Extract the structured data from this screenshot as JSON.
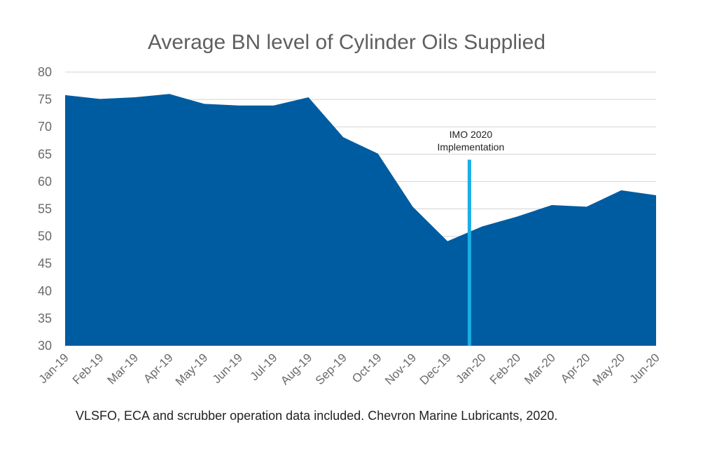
{
  "chart_data": {
    "type": "area",
    "title": "Average BN level of Cylinder Oils Supplied",
    "xlabel": "",
    "ylabel": "",
    "categories": [
      "Jan-19",
      "Feb-19",
      "Mar-19",
      "Apr-19",
      "May-19",
      "Jun-19",
      "Jul-19",
      "Aug-19",
      "Sep-19",
      "Oct-19",
      "Nov-19",
      "Dec-19",
      "Jan-20",
      "Feb-20",
      "Mar-20",
      "Apr-20",
      "May-20",
      "Jun-20"
    ],
    "series": [
      {
        "values": [
          75.8,
          75.1,
          75.4,
          76.0,
          74.2,
          73.9,
          73.9,
          75.4,
          68.1,
          65.1,
          55.4,
          49.1,
          51.8,
          53.6,
          55.7,
          55.4,
          58.4,
          57.5
        ]
      }
    ],
    "ylim": [
      30,
      80
    ],
    "yticks": [
      30,
      35,
      40,
      45,
      50,
      55,
      60,
      65,
      70,
      75,
      80
    ],
    "grid": true,
    "annotation": {
      "line1": "IMO 2020",
      "line2": "Implementation",
      "x_position": 11.63,
      "line_top_value": 64
    },
    "colors": {
      "area": "#005CA0",
      "marker": "#1AAEE5",
      "grid": "#D4D4D4"
    }
  },
  "caption": "VLSFO, ECA and scrubber operation data included. Chevron Marine Lubricants, 2020."
}
